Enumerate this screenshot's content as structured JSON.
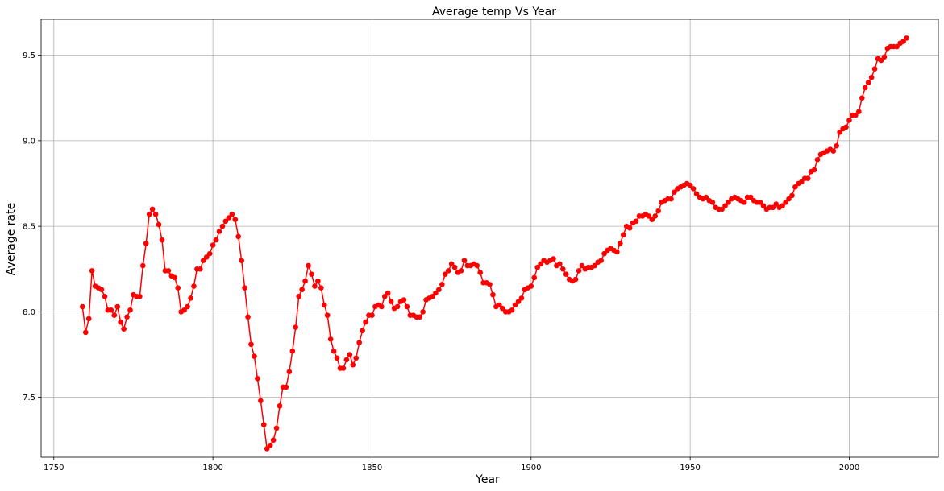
{
  "chart_data": {
    "type": "line",
    "title": "Average temp Vs Year",
    "xlabel": "Year",
    "ylabel": "Average rate",
    "xlim": [
      1746,
      2028
    ],
    "ylim": [
      7.15,
      9.71
    ],
    "xticks": [
      1750,
      1800,
      1850,
      1900,
      1950,
      2000
    ],
    "yticks": [
      7.5,
      8.0,
      8.5,
      9.0,
      9.5
    ],
    "xtick_labels": [
      "1750",
      "1800",
      "1850",
      "1900",
      "1950",
      "2000"
    ],
    "ytick_labels": [
      "7.5",
      "8.0",
      "8.5",
      "9.0",
      "9.5"
    ],
    "grid": true,
    "series": [
      {
        "color": "#ff0000",
        "marker": "circle",
        "x_start": 1759,
        "x_step": 1,
        "values": [
          8.03,
          7.88,
          7.96,
          8.24,
          8.15,
          8.14,
          8.13,
          8.09,
          8.01,
          8.01,
          7.98,
          8.03,
          7.94,
          7.9,
          7.97,
          8.01,
          8.1,
          8.09,
          8.09,
          8.27,
          8.4,
          8.57,
          8.6,
          8.57,
          8.51,
          8.42,
          8.24,
          8.24,
          8.21,
          8.2,
          8.14,
          8.0,
          8.01,
          8.03,
          8.08,
          8.15,
          8.25,
          8.25,
          8.3,
          8.32,
          8.34,
          8.39,
          8.42,
          8.47,
          8.5,
          8.53,
          8.55,
          8.57,
          8.54,
          8.44,
          8.3,
          8.14,
          7.97,
          7.81,
          7.74,
          7.61,
          7.48,
          7.34,
          7.2,
          7.22,
          7.25,
          7.32,
          7.45,
          7.56,
          7.56,
          7.65,
          7.77,
          7.91,
          8.09,
          8.13,
          8.18,
          8.27,
          8.22,
          8.15,
          8.18,
          8.14,
          8.04,
          7.98,
          7.84,
          7.77,
          7.73,
          7.67,
          7.67,
          7.72,
          7.75,
          7.69,
          7.73,
          7.82,
          7.89,
          7.94,
          7.98,
          7.98,
          8.03,
          8.04,
          8.03,
          8.09,
          8.11,
          8.06,
          8.02,
          8.03,
          8.06,
          8.07,
          8.03,
          7.98,
          7.98,
          7.97,
          7.97,
          8.0,
          8.07,
          8.08,
          8.09,
          8.11,
          8.13,
          8.16,
          8.22,
          8.24,
          8.28,
          8.26,
          8.23,
          8.24,
          8.3,
          8.27,
          8.27,
          8.28,
          8.27,
          8.23,
          8.17,
          8.17,
          8.16,
          8.1,
          8.03,
          8.04,
          8.02,
          8.0,
          8.0,
          8.01,
          8.04,
          8.06,
          8.08,
          8.13,
          8.14,
          8.15,
          8.2,
          8.26,
          8.28,
          8.3,
          8.29,
          8.3,
          8.31,
          8.27,
          8.28,
          8.25,
          8.22,
          8.19,
          8.18,
          8.19,
          8.24,
          8.27,
          8.25,
          8.26,
          8.26,
          8.27,
          8.29,
          8.3,
          8.34,
          8.36,
          8.37,
          8.36,
          8.35,
          8.4,
          8.45,
          8.5,
          8.49,
          8.52,
          8.53,
          8.56,
          8.56,
          8.57,
          8.56,
          8.54,
          8.56,
          8.59,
          8.64,
          8.65,
          8.66,
          8.66,
          8.7,
          8.72,
          8.73,
          8.74,
          8.75,
          8.74,
          8.72,
          8.69,
          8.67,
          8.66,
          8.67,
          8.65,
          8.64,
          8.61,
          8.6,
          8.6,
          8.62,
          8.64,
          8.66,
          8.67,
          8.66,
          8.65,
          8.64,
          8.67,
          8.67,
          8.65,
          8.64,
          8.64,
          8.62,
          8.6,
          8.61,
          8.61,
          8.63,
          8.61,
          8.62,
          8.64,
          8.66,
          8.68,
          8.73,
          8.75,
          8.76,
          8.78,
          8.78,
          8.82,
          8.83,
          8.89,
          8.92,
          8.93,
          8.94,
          8.95,
          8.94,
          8.97,
          9.05,
          9.07,
          9.08,
          9.12,
          9.15,
          9.15,
          9.17,
          9.25,
          9.31,
          9.34,
          9.37,
          9.42,
          9.48,
          9.47,
          9.49,
          9.54,
          9.55,
          9.55,
          9.55,
          9.57,
          9.58,
          9.6
        ]
      }
    ]
  }
}
